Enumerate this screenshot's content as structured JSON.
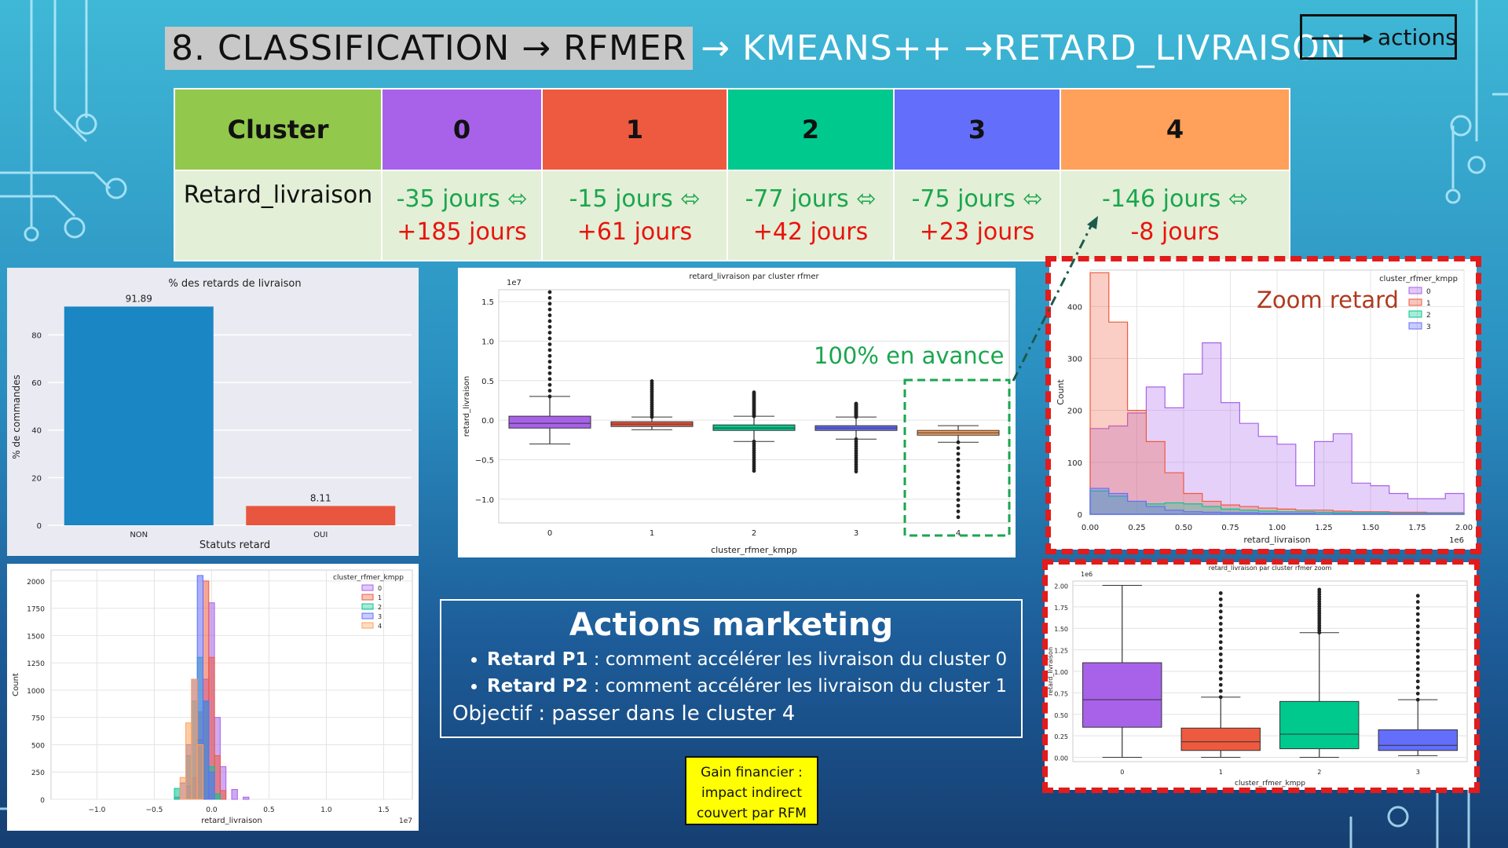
{
  "slide": {
    "title_highlight": "8. CLASSIFICATION → RFMER",
    "title_rest": "→ KMEANS++ →RETARD_LIVRAISON",
    "legend_label": "actions"
  },
  "cluster_table": {
    "header_label": "Cluster",
    "columns": [
      {
        "id": "0",
        "color": "#a862ea"
      },
      {
        "id": "1",
        "color": "#ee5a3f"
      },
      {
        "id": "2",
        "color": "#00c98d"
      },
      {
        "id": "3",
        "color": "#636efa"
      },
      {
        "id": "4",
        "color": "#ffa15a"
      }
    ],
    "header_color": "#92c84c",
    "row_label": "Retard_livraison",
    "ranges": [
      {
        "low": "-35 jours ⬄",
        "high": "+185 jours"
      },
      {
        "low": "-15 jours ⬄",
        "high": "+61 jours"
      },
      {
        "low": "-77 jours ⬄",
        "high": "+42 jours"
      },
      {
        "low": "-75 jours ⬄",
        "high": "+23 jours"
      },
      {
        "low": "-146 jours ⬄",
        "high": "-8 jours"
      }
    ]
  },
  "annotations": {
    "advance": "100% en avance",
    "zoom": "Zoom retard"
  },
  "actions_box": {
    "title": "Actions marketing",
    "items": [
      {
        "bold": "Retard P1",
        "text": " : comment accélérer les livraison du cluster  0"
      },
      {
        "bold": "Retard P2",
        "text": " : comment accélérer les livraison du cluster 1"
      }
    ],
    "objective": "Objectif : passer dans le cluster 4"
  },
  "gain_box": {
    "line1": "Gain financier :",
    "line2": "impact indirect",
    "line3": "couvert par RFM"
  },
  "cluster_colors": [
    "#a862ea",
    "#ee5a3f",
    "#00c98d",
    "#636efa",
    "#ffa15a"
  ],
  "chart_data": [
    {
      "type": "bar",
      "title": "% des retards de livraison",
      "xlabel": "Statuts retard",
      "ylabel": "% de commandes",
      "categories": [
        "NON",
        "OUI"
      ],
      "values": [
        91.89,
        8.11
      ],
      "value_labels": [
        "91.89",
        "8.11"
      ],
      "colors": [
        "#1a86c4",
        "#e8563f"
      ],
      "ylim": [
        0,
        95
      ],
      "yticks": [
        "0",
        "20",
        "40",
        "60",
        "80"
      ],
      "grid": true
    },
    {
      "type": "box",
      "title": "retard_livraison par cluster rfmer",
      "xlabel": "cluster_rfmer_kmpp",
      "ylabel": "retard_livraison",
      "scale_label": "1e7",
      "categories": [
        "0",
        "1",
        "2",
        "3",
        "4"
      ],
      "ylim": [
        -1.3,
        1.65
      ],
      "yticks": [
        "1.5",
        "1.0",
        "0.5",
        "0.0",
        "−0.5",
        "−1.0"
      ],
      "boxes": [
        {
          "q1": -0.1,
          "median": -0.04,
          "q3": 0.05,
          "wlow": -0.3,
          "whigh": 0.3,
          "out_low": -0.3,
          "out_high": 1.62
        },
        {
          "q1": -0.08,
          "median": -0.05,
          "q3": -0.02,
          "wlow": -0.12,
          "whigh": 0.04,
          "out_low": -0.12,
          "out_high": 0.52
        },
        {
          "q1": -0.13,
          "median": -0.1,
          "q3": -0.06,
          "wlow": -0.27,
          "whigh": 0.05,
          "out_low": -0.67,
          "out_high": 0.37
        },
        {
          "q1": -0.13,
          "median": -0.1,
          "q3": -0.07,
          "wlow": -0.24,
          "whigh": 0.04,
          "out_low": -0.65,
          "out_high": 0.22
        },
        {
          "q1": -0.19,
          "median": -0.16,
          "q3": -0.13,
          "wlow": -0.28,
          "whigh": -0.07,
          "out_low": -1.3,
          "out_high": -0.07
        }
      ],
      "grid": true
    },
    {
      "type": "histogram",
      "title": "",
      "xlabel": "retard_livraison",
      "ylabel": "Count",
      "scale_label": "1e6",
      "legend_title": "cluster_rfmer_kmpp",
      "legend_items": [
        "0",
        "1",
        "2",
        "3"
      ],
      "legend_position": "top-right",
      "x": [
        0.0,
        0.1,
        0.2,
        0.3,
        0.4,
        0.5,
        0.6,
        0.7,
        0.8,
        0.9,
        1.0,
        1.1,
        1.2,
        1.3,
        1.4,
        1.5,
        1.6,
        1.7,
        1.8,
        1.9,
        2.0
      ],
      "xticks": [
        "0.00",
        "0.25",
        "0.50",
        "0.75",
        "1.00",
        "1.25",
        "1.50",
        "1.75",
        "2.00"
      ],
      "yticks": [
        "0",
        "100",
        "200",
        "300",
        "400"
      ],
      "ylim": [
        0,
        470
      ],
      "series": [
        {
          "name": "0",
          "values": [
            165,
            170,
            195,
            245,
            205,
            270,
            330,
            215,
            175,
            150,
            135,
            55,
            140,
            155,
            60,
            55,
            40,
            30,
            30,
            40
          ]
        },
        {
          "name": "1",
          "values": [
            465,
            370,
            200,
            140,
            80,
            40,
            25,
            18,
            15,
            12,
            10,
            8,
            8,
            6,
            5,
            5,
            4,
            4,
            3,
            3
          ]
        },
        {
          "name": "2",
          "values": [
            45,
            35,
            25,
            20,
            22,
            20,
            15,
            10,
            8,
            6,
            5,
            5,
            4,
            3,
            3,
            3,
            2,
            2,
            2,
            2
          ]
        },
        {
          "name": "3",
          "values": [
            50,
            40,
            25,
            15,
            8,
            5,
            4,
            3,
            3,
            2,
            2,
            2,
            1,
            1,
            1,
            1,
            1,
            1,
            1,
            1
          ]
        }
      ],
      "grid": true
    },
    {
      "type": "histogram",
      "title": "",
      "xlabel": "retard_livraison",
      "ylabel": "Count",
      "scale_label": "1e7",
      "legend_title": "cluster_rfmer_kmpp",
      "legend_items": [
        "0",
        "1",
        "2",
        "3",
        "4"
      ],
      "legend_position": "top-right",
      "xlim": [
        -1.4,
        1.75
      ],
      "xticks": [
        "−1.0",
        "−0.5",
        "0.0",
        "0.5",
        "1.0",
        "1.5"
      ],
      "yticks": [
        "0",
        "250",
        "500",
        "750",
        "1000",
        "1250",
        "1500",
        "1750",
        "2000"
      ],
      "ylim": [
        0,
        2100
      ],
      "series": [
        {
          "name": "0",
          "centers": [
            -0.3,
            -0.2,
            -0.1,
            -0.05,
            0.0,
            0.05,
            0.1,
            0.2,
            0.3
          ],
          "values": [
            20,
            120,
            550,
            1100,
            1800,
            750,
            300,
            90,
            20
          ]
        },
        {
          "name": "1",
          "centers": [
            -0.15,
            -0.1,
            -0.05,
            0.0,
            0.05,
            0.1
          ],
          "values": [
            200,
            800,
            2000,
            1300,
            400,
            80
          ]
        },
        {
          "name": "2",
          "centers": [
            -0.3,
            -0.2,
            -0.15,
            -0.1,
            -0.05,
            0.0,
            0.05
          ],
          "values": [
            100,
            400,
            900,
            1300,
            900,
            300,
            50
          ]
        },
        {
          "name": "3",
          "centers": [
            -0.25,
            -0.2,
            -0.15,
            -0.1,
            -0.05,
            0.0
          ],
          "values": [
            150,
            500,
            1100,
            2050,
            900,
            250
          ]
        },
        {
          "name": "4",
          "centers": [
            -0.25,
            -0.2,
            -0.15,
            -0.1
          ],
          "values": [
            200,
            700,
            1100,
            500
          ]
        }
      ],
      "grid": true
    },
    {
      "type": "box",
      "title": "retard_livraison par cluster rfmer zoom",
      "xlabel": "cluster_rfmer_kmpp",
      "ylabel": "retard_livraison",
      "scale_label": "1e6",
      "categories": [
        "0",
        "1",
        "2",
        "3"
      ],
      "ylim": [
        -0.05,
        2.05
      ],
      "yticks": [
        "2.00",
        "1.75",
        "1.50",
        "1.25",
        "1.00",
        "0.75",
        "0.50",
        "0.25",
        "0.00"
      ],
      "boxes": [
        {
          "q1": 0.35,
          "median": 0.67,
          "q3": 1.1,
          "wlow": 0.0,
          "whigh": 2.0,
          "out_low": 0.0,
          "out_high": 2.0
        },
        {
          "q1": 0.08,
          "median": 0.18,
          "q3": 0.34,
          "wlow": 0.0,
          "whigh": 0.7,
          "out_low": 0.0,
          "out_high": 1.98
        },
        {
          "q1": 0.1,
          "median": 0.27,
          "q3": 0.65,
          "wlow": 0.0,
          "whigh": 1.45,
          "out_low": 0.0,
          "out_high": 1.95
        },
        {
          "q1": 0.08,
          "median": 0.14,
          "q3": 0.32,
          "wlow": 0.02,
          "whigh": 0.67,
          "out_low": 0.02,
          "out_high": 1.95
        }
      ],
      "grid": true
    }
  ]
}
